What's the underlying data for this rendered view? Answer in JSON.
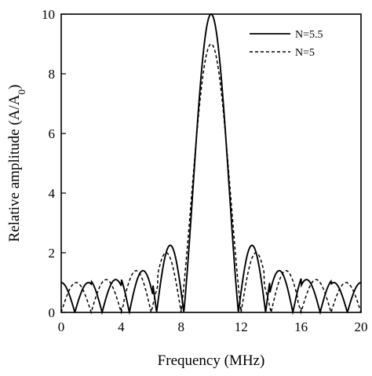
{
  "chart_data": {
    "type": "line",
    "xlabel": "Frequency (MHz)",
    "ylabel": "Relative amplitude (A/A",
    "ylabel_subscript": "0",
    "ylabel_close": ")",
    "xlim": [
      0,
      20
    ],
    "ylim": [
      0,
      10
    ],
    "xticks": [
      "0",
      "4",
      "8",
      "12",
      "16",
      "20"
    ],
    "yticks": [
      "0",
      "2",
      "4",
      "6",
      "8",
      "10"
    ],
    "grid": false,
    "legend_position": "top-right",
    "center_frequency": 10,
    "series": [
      {
        "name": "N=5.5",
        "line_style": "solid",
        "cycles": 5.5,
        "peak": 10,
        "side_lobe_peaks": [
          {
            "x": 1.0,
            "y": 1.0
          },
          {
            "x": 3.0,
            "y": 1.1
          },
          {
            "x": 5.0,
            "y": 1.4
          },
          {
            "x": 7.2,
            "y": 2.25
          },
          {
            "x": 10.0,
            "y": 10.0
          },
          {
            "x": 12.8,
            "y": 2.25
          },
          {
            "x": 15.0,
            "y": 1.4
          },
          {
            "x": 17.0,
            "y": 1.1
          },
          {
            "x": 19.0,
            "y": 1.0
          }
        ]
      },
      {
        "name": "N=5",
        "line_style": "dashed",
        "cycles": 5,
        "peak": 9,
        "side_lobe_peaks": [
          {
            "x": 1.0,
            "y": 1.0
          },
          {
            "x": 3.1,
            "y": 1.1
          },
          {
            "x": 5.3,
            "y": 1.4
          },
          {
            "x": 7.6,
            "y": 2.0
          },
          {
            "x": 10.0,
            "y": 9.0
          },
          {
            "x": 12.4,
            "y": 2.0
          },
          {
            "x": 14.7,
            "y": 1.4
          },
          {
            "x": 16.9,
            "y": 1.1
          },
          {
            "x": 19.0,
            "y": 1.0
          }
        ]
      }
    ]
  },
  "colors": {
    "line": "#000000",
    "background": "#ffffff"
  }
}
